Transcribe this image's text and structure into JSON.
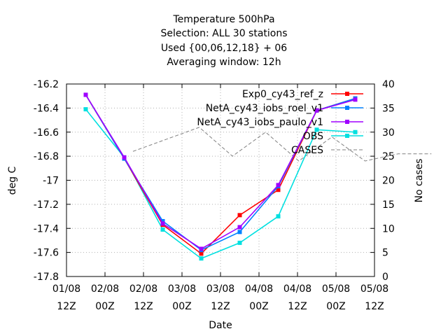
{
  "chart_data": {
    "type": "line",
    "title": [
      "Temperature 500hPa",
      "Selection: ALL     30 stations",
      "Used {00,06,12,18} + 06",
      "Averaging window: 12h"
    ],
    "xlabel": "Date",
    "ylabel": "deg C",
    "y2label": "No cases",
    "ylim": [
      -17.8,
      -16.2
    ],
    "y2lim": [
      0,
      40
    ],
    "yticks": [
      "-16.2",
      "-16.4",
      "-16.6",
      "-16.8",
      "-17",
      "-17.2",
      "-17.4",
      "-17.6",
      "-17.8"
    ],
    "y2ticks": [
      "40",
      "35",
      "30",
      "25",
      "20",
      "15",
      "10",
      "5",
      "0"
    ],
    "xticks": [
      {
        "line1": "01/08",
        "line2": "12Z"
      },
      {
        "line1": "02/08",
        "line2": "00Z"
      },
      {
        "line1": "02/08",
        "line2": "12Z"
      },
      {
        "line1": "03/08",
        "line2": "00Z"
      },
      {
        "line1": "03/08",
        "line2": "12Z"
      },
      {
        "line1": "04/08",
        "line2": "00Z"
      },
      {
        "line1": "04/08",
        "line2": "12Z"
      },
      {
        "line1": "05/08",
        "line2": "00Z"
      },
      {
        "line1": "05/08",
        "line2": "12Z"
      }
    ],
    "x": [
      "01/08 18Z",
      "02/08 06Z",
      "02/08 18Z",
      "03/08 06Z",
      "03/08 18Z",
      "04/08 06Z",
      "04/08 18Z",
      "05/08 06Z"
    ],
    "series": [
      {
        "name": "Exp0_cy43_ref_z",
        "color": "#ff0000",
        "values": [
          -16.29,
          -16.82,
          -17.37,
          -17.61,
          -17.29,
          -17.08,
          -16.42,
          -16.32
        ]
      },
      {
        "name": "NetA_cy43_iobs_roel_v1",
        "color": "#0080ff",
        "values": [
          -16.29,
          -16.82,
          -17.34,
          -17.58,
          -17.43,
          -17.05,
          -16.42,
          -16.32
        ]
      },
      {
        "name": "NetA_cy43_iobs_paulo_v1",
        "color": "#a000ff",
        "values": [
          -16.29,
          -16.81,
          -17.36,
          -17.57,
          -17.39,
          -17.04,
          -16.42,
          -16.33
        ]
      },
      {
        "name": "OBS",
        "color": "#00e0e0",
        "values": [
          -16.41,
          -16.81,
          -17.41,
          -17.65,
          -17.52,
          -17.3,
          -16.58,
          -16.6
        ]
      }
    ],
    "cases": {
      "name": "CASES",
      "color": "#808080",
      "axis": "right",
      "values": [
        26,
        28.5,
        31,
        25,
        30,
        24,
        29,
        24,
        25.5,
        25.5
      ]
    },
    "legend": "top-right"
  }
}
